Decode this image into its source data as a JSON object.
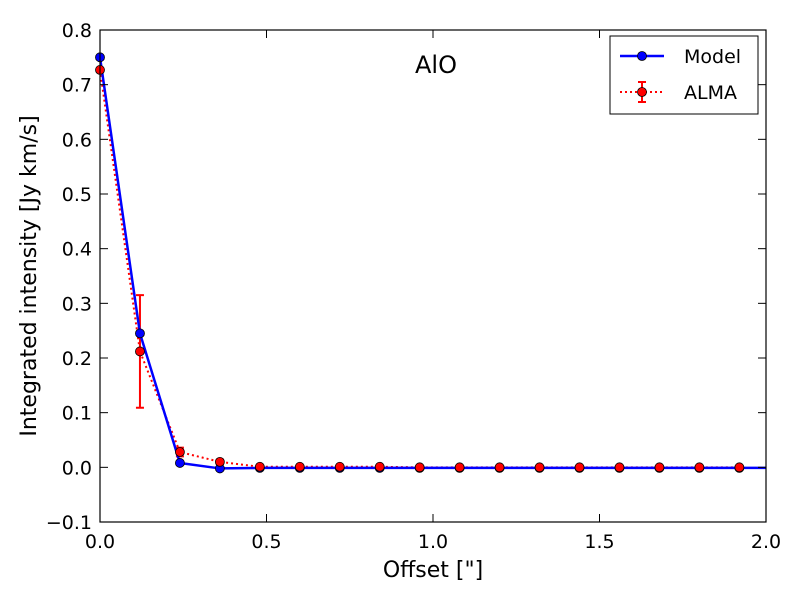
{
  "chart_data": {
    "type": "line",
    "title": "AlO",
    "xlabel": "Offset [\"]",
    "ylabel": "Integrated intensity [Jy km/s]",
    "xlim": [
      0.0,
      2.0
    ],
    "ylim": [
      -0.1,
      0.8
    ],
    "xticks": [
      "0.0",
      "0.5",
      "1.0",
      "1.5",
      "2.0"
    ],
    "yticks": [
      "−0.1",
      "0.0",
      "0.1",
      "0.2",
      "0.3",
      "0.4",
      "0.5",
      "0.6",
      "0.7",
      "0.8"
    ],
    "xtick_values": [
      0.0,
      0.5,
      1.0,
      1.5,
      2.0
    ],
    "ytick_values": [
      -0.1,
      0.0,
      0.1,
      0.2,
      0.3,
      0.4,
      0.5,
      0.6,
      0.7,
      0.8
    ],
    "legend_position": "top-right",
    "grid": false,
    "series": [
      {
        "name": "Model",
        "color": "#0000ff",
        "style": "solid",
        "x": [
          0.0,
          0.12,
          0.24,
          0.36,
          0.48,
          0.6,
          0.72,
          0.84,
          0.96,
          1.08,
          1.2,
          1.32,
          1.44,
          1.56,
          1.68,
          1.8,
          1.92,
          2.0
        ],
        "y": [
          0.75,
          0.245,
          0.008,
          -0.002,
          -0.001,
          -0.001,
          -0.001,
          -0.001,
          -0.001,
          -0.001,
          -0.001,
          -0.001,
          -0.001,
          -0.001,
          -0.001,
          -0.001,
          -0.001,
          -0.001
        ],
        "markers": [
          true,
          true,
          true,
          true,
          true,
          true,
          true,
          true,
          true,
          true,
          true,
          true,
          true,
          true,
          true,
          true,
          true,
          false
        ]
      },
      {
        "name": "ALMA",
        "color": "#ff0000",
        "style": "dotted",
        "x": [
          0.0,
          0.12,
          0.24,
          0.36,
          0.48,
          0.6,
          0.72,
          0.84,
          0.96,
          1.08,
          1.2,
          1.32,
          1.44,
          1.56,
          1.68,
          1.8,
          1.92
        ],
        "y": [
          0.727,
          0.212,
          0.028,
          0.01,
          0.001,
          0.001,
          0.001,
          0.001,
          0.0,
          0.0,
          0.0,
          0.0,
          0.0,
          0.0,
          0.0,
          0.0,
          0.0
        ],
        "yerr": [
          0.0,
          0.103,
          0.008,
          0.004,
          0.0,
          0.0,
          0.0,
          0.0,
          0.0,
          0.0,
          0.0,
          0.0,
          0.0,
          0.0,
          0.0,
          0.0,
          0.0
        ]
      }
    ]
  }
}
